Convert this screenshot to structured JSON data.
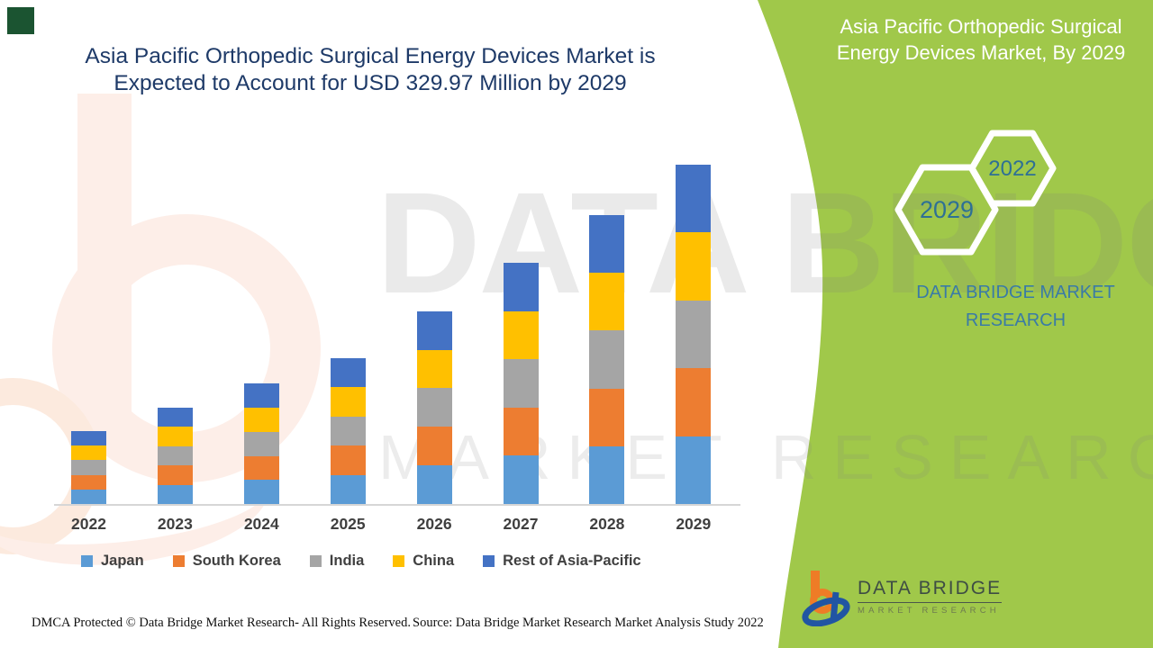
{
  "header": {
    "title_line1": "Asia Pacific Orthopedic Surgical Energy Devices Market is",
    "title_line2": "Expected to Account for USD 329.97 Million by 2029"
  },
  "side_panel": {
    "title_line1": "Asia Pacific Orthopedic Surgical",
    "title_line2": "Energy Devices Market, By 2029",
    "hexagon_large_year": "2029",
    "hexagon_small_year": "2022",
    "brand_line1": "DATA BRIDGE MARKET",
    "brand_line2": "RESEARCH",
    "panel_color": "#a0c84a",
    "hexagon_text_color": "#2e7095"
  },
  "watermark": {
    "line1": "DATA BRIDGE",
    "line2": "MARKET RESEARCH"
  },
  "chart_data": {
    "type": "bar",
    "stacked": true,
    "unit": "USD Million",
    "categories": [
      "2022",
      "2023",
      "2024",
      "2025",
      "2026",
      "2027",
      "2028",
      "2029"
    ],
    "series": [
      {
        "name": "Japan",
        "color": "#5B9BD5",
        "values": [
          14.2,
          18.8,
          23.4,
          28.4,
          37.5,
          46.9,
          56.2,
          65.99
        ]
      },
      {
        "name": "South Korea",
        "color": "#ED7D31",
        "values": [
          14.2,
          18.8,
          23.4,
          28.4,
          37.5,
          46.9,
          56.2,
          65.99
        ]
      },
      {
        "name": "India",
        "color": "#A5A5A5",
        "values": [
          14.2,
          18.8,
          23.4,
          28.4,
          37.5,
          46.9,
          56.2,
          65.99
        ]
      },
      {
        "name": "China",
        "color": "#FFC000",
        "values": [
          14.2,
          18.8,
          23.4,
          28.4,
          37.5,
          46.9,
          56.2,
          65.99
        ]
      },
      {
        "name": "Rest of Asia-Pacific",
        "color": "#4472C4",
        "values": [
          14.2,
          18.8,
          23.4,
          28.4,
          37.5,
          46.9,
          56.2,
          65.99
        ]
      }
    ],
    "totals": [
      71.0,
      94.0,
      117.0,
      142.0,
      187.5,
      234.5,
      281.0,
      329.97
    ],
    "xlabel": "",
    "ylabel": "",
    "ylim": [
      0,
      345
    ],
    "grid": false,
    "legend_position": "bottom",
    "title": "Asia Pacific Orthopedic Surgical Energy Devices Market is Expected to Account for USD 329.97 Million by 2029"
  },
  "footer": {
    "dmca": "DMCA Protected © Data Bridge Market Research- All Rights Reserved.",
    "source": "Source: Data Bridge Market Research Market Analysis Study 2022"
  },
  "logo": {
    "name": "DATA BRIDGE",
    "subtitle": "MARKET RESEARCH"
  }
}
